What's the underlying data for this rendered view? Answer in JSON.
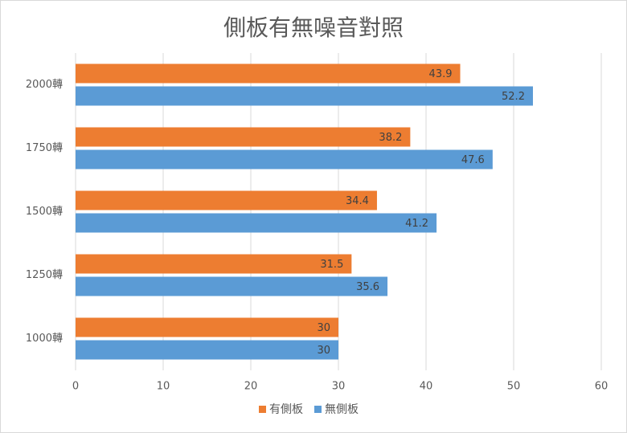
{
  "chart_data": {
    "type": "bar",
    "orientation": "horizontal",
    "title": "側板有無噪音對照",
    "categories": [
      "1000轉",
      "1250轉",
      "1500轉",
      "1750轉",
      "2000轉"
    ],
    "series": [
      {
        "name": "有側板",
        "color": "#ed7d31",
        "values": [
          30,
          31.5,
          34.4,
          38.2,
          43.9
        ]
      },
      {
        "name": "無側板",
        "color": "#5b9bd5",
        "values": [
          30,
          35.6,
          41.2,
          47.6,
          52.2
        ]
      }
    ],
    "xlim": [
      0,
      60
    ],
    "xticks": [
      0,
      10,
      20,
      30,
      40,
      50,
      60
    ],
    "grid": true,
    "legend": "bottom"
  }
}
